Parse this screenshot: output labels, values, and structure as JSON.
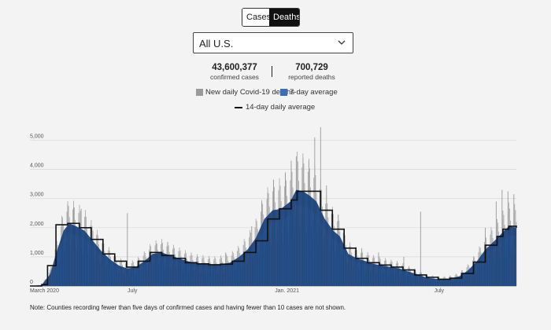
{
  "toggle": {
    "cases_label": "Cases",
    "deaths_label": "Deaths",
    "selected": "Deaths"
  },
  "region_select": {
    "value": "All U.S."
  },
  "stats": {
    "cases_value": "43,600,377",
    "cases_label": "confirmed cases",
    "deaths_value": "700,729",
    "deaths_label": "reported deaths"
  },
  "legend": {
    "daily": "New daily Covid-19 deaths",
    "avg7": "7-day average",
    "avg14": "14-day daily average"
  },
  "colors": {
    "daily": "#9a9a9a",
    "avg7": "#3a6eb5",
    "avg7_fill": "#163f78",
    "avg14": "#111111"
  },
  "note": "Note: Counties recording fewer than five days of confirmed cases and having fewer than 10 cases are not shown.",
  "chart_data": {
    "type": "area",
    "x_start": "2020-03-01",
    "x_end": "2021-10-01",
    "ylim": [
      0,
      5500
    ],
    "y_ticks": [
      0,
      1000,
      2000,
      3000,
      4000,
      5000
    ],
    "y_tick_labels": [
      "0",
      "1,000",
      "2,000",
      "3,000",
      "4,000",
      "5,000"
    ],
    "x_tick_labels": [
      {
        "date": "2020-03-01",
        "label": "March 2020"
      },
      {
        "date": "2020-07-01",
        "label": "July"
      },
      {
        "date": "2021-01-01",
        "label": "Jan. 2021"
      },
      {
        "date": "2021-07-01",
        "label": "July"
      }
    ],
    "grid": true,
    "seven_day_avg": [
      [
        "2020-03-01",
        0
      ],
      [
        "2020-03-15",
        30
      ],
      [
        "2020-03-25",
        400
      ],
      [
        "2020-04-01",
        1100
      ],
      [
        "2020-04-10",
        1900
      ],
      [
        "2020-04-17",
        2150
      ],
      [
        "2020-04-25",
        2050
      ],
      [
        "2020-05-05",
        1900
      ],
      [
        "2020-05-15",
        1550
      ],
      [
        "2020-05-25",
        1200
      ],
      [
        "2020-06-05",
        900
      ],
      [
        "2020-06-15",
        700
      ],
      [
        "2020-06-25",
        600
      ],
      [
        "2020-07-05",
        650
      ],
      [
        "2020-07-15",
        850
      ],
      [
        "2020-07-25",
        1100
      ],
      [
        "2020-08-05",
        1150
      ],
      [
        "2020-08-15",
        1050
      ],
      [
        "2020-08-25",
        950
      ],
      [
        "2020-09-05",
        850
      ],
      [
        "2020-09-15",
        780
      ],
      [
        "2020-09-25",
        750
      ],
      [
        "2020-10-05",
        720
      ],
      [
        "2020-10-15",
        750
      ],
      [
        "2020-10-25",
        800
      ],
      [
        "2020-11-05",
        1000
      ],
      [
        "2020-11-15",
        1250
      ],
      [
        "2020-11-25",
        1650
      ],
      [
        "2020-12-05",
        2300
      ],
      [
        "2020-12-15",
        2600
      ],
      [
        "2020-12-25",
        2650
      ],
      [
        "2021-01-05",
        2900
      ],
      [
        "2021-01-12",
        3300
      ],
      [
        "2021-01-20",
        3250
      ],
      [
        "2021-01-28",
        3100
      ],
      [
        "2021-02-05",
        2900
      ],
      [
        "2021-02-15",
        2300
      ],
      [
        "2021-02-25",
        1900
      ],
      [
        "2021-03-05",
        1700
      ],
      [
        "2021-03-15",
        1100
      ],
      [
        "2021-03-25",
        950
      ],
      [
        "2021-04-05",
        850
      ],
      [
        "2021-04-15",
        750
      ],
      [
        "2021-04-25",
        700
      ],
      [
        "2021-05-05",
        650
      ],
      [
        "2021-05-15",
        600
      ],
      [
        "2021-05-25",
        500
      ],
      [
        "2021-06-05",
        400
      ],
      [
        "2021-06-15",
        300
      ],
      [
        "2021-06-25",
        250
      ],
      [
        "2021-07-05",
        230
      ],
      [
        "2021-07-15",
        260
      ],
      [
        "2021-07-25",
        330
      ],
      [
        "2021-08-05",
        550
      ],
      [
        "2021-08-15",
        850
      ],
      [
        "2021-08-25",
        1250
      ],
      [
        "2021-09-05",
        1550
      ],
      [
        "2021-09-15",
        1850
      ],
      [
        "2021-09-22",
        2050
      ],
      [
        "2021-10-01",
        2000
      ]
    ],
    "fourteen_day_avg_steps": [
      [
        "2020-03-01",
        0
      ],
      [
        "2020-03-15",
        50
      ],
      [
        "2020-03-22",
        700
      ],
      [
        "2020-04-01",
        2100
      ],
      [
        "2020-04-15",
        2150
      ],
      [
        "2020-04-29",
        2000
      ],
      [
        "2020-05-13",
        1600
      ],
      [
        "2020-05-27",
        1100
      ],
      [
        "2020-06-10",
        850
      ],
      [
        "2020-06-24",
        650
      ],
      [
        "2020-07-08",
        850
      ],
      [
        "2020-07-22",
        1150
      ],
      [
        "2020-08-05",
        1050
      ],
      [
        "2020-08-19",
        950
      ],
      [
        "2020-09-02",
        800
      ],
      [
        "2020-09-16",
        760
      ],
      [
        "2020-09-30",
        730
      ],
      [
        "2020-10-14",
        750
      ],
      [
        "2020-10-28",
        850
      ],
      [
        "2020-11-11",
        1150
      ],
      [
        "2020-11-25",
        1550
      ],
      [
        "2020-12-09",
        2300
      ],
      [
        "2020-12-23",
        2650
      ],
      [
        "2021-01-06",
        2950
      ],
      [
        "2021-01-13",
        3250
      ],
      [
        "2021-01-27",
        3250
      ],
      [
        "2021-02-10",
        2600
      ],
      [
        "2021-02-24",
        1950
      ],
      [
        "2021-03-10",
        1300
      ],
      [
        "2021-03-24",
        950
      ],
      [
        "2021-04-07",
        800
      ],
      [
        "2021-04-21",
        720
      ],
      [
        "2021-05-05",
        650
      ],
      [
        "2021-05-19",
        550
      ],
      [
        "2021-06-02",
        380
      ],
      [
        "2021-06-16",
        300
      ],
      [
        "2021-06-30",
        230
      ],
      [
        "2021-07-14",
        270
      ],
      [
        "2021-07-28",
        430
      ],
      [
        "2021-08-11",
        820
      ],
      [
        "2021-08-25",
        1400
      ],
      [
        "2021-09-08",
        1700
      ],
      [
        "2021-09-15",
        1950
      ],
      [
        "2021-09-22",
        2050
      ],
      [
        "2021-10-01",
        2000
      ]
    ],
    "daily_spikes": [
      [
        "2020-04-15",
        2800
      ],
      [
        "2020-04-22",
        2700
      ],
      [
        "2020-05-01",
        2650
      ],
      [
        "2020-05-15",
        1900
      ],
      [
        "2020-06-25",
        2500
      ],
      [
        "2020-07-30",
        1450
      ],
      [
        "2020-08-12",
        1500
      ],
      [
        "2020-10-20",
        1150
      ],
      [
        "2020-11-20",
        2050
      ],
      [
        "2020-12-02",
        2900
      ],
      [
        "2020-12-09",
        3200
      ],
      [
        "2020-12-16",
        3650
      ],
      [
        "2020-12-30",
        3900
      ],
      [
        "2021-01-06",
        4300
      ],
      [
        "2021-01-12",
        4450
      ],
      [
        "2021-01-20",
        4400
      ],
      [
        "2021-01-27",
        4300
      ],
      [
        "2021-02-03",
        5100
      ],
      [
        "2021-02-10",
        5450
      ],
      [
        "2021-02-17",
        3450
      ],
      [
        "2021-03-03",
        2450
      ],
      [
        "2021-03-31",
        1300
      ],
      [
        "2021-04-20",
        1150
      ],
      [
        "2021-05-20",
        1000
      ],
      [
        "2021-06-09",
        2550
      ],
      [
        "2021-08-25",
        2000
      ],
      [
        "2021-09-07",
        2900
      ],
      [
        "2021-09-14",
        3300
      ],
      [
        "2021-09-21",
        3250
      ],
      [
        "2021-09-28",
        3150
      ]
    ]
  }
}
